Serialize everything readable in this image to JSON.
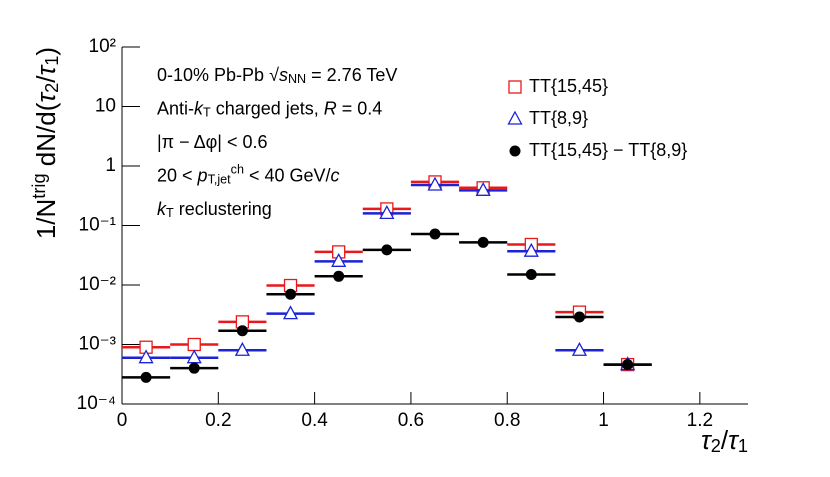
{
  "chart_data": {
    "type": "histogram-points",
    "xlim": [
      0,
      1.3
    ],
    "xticks": [
      0,
      0.2,
      0.4,
      0.6,
      0.8,
      1,
      1.2
    ],
    "ylim": [
      0.0001,
      100
    ],
    "log_y": true,
    "yticks": [
      {
        "value": 100,
        "label": "10²"
      },
      10,
      1,
      {
        "value": 0.1,
        "label": "10⁻¹"
      },
      {
        "value": 0.01,
        "label": "10⁻²"
      },
      {
        "value": 0.001,
        "label": "10⁻³"
      },
      {
        "value": 0.0001,
        "label": "10⁻⁴"
      }
    ],
    "x_label": {
      "parts": [
        "τ",
        "2",
        "/",
        "τ",
        "1"
      ],
      "styles": [
        "i",
        "sub",
        "normal",
        "i",
        "sub"
      ]
    },
    "y_label": {
      "parts": [
        "1/N",
        "trig",
        " dN/d(",
        "τ",
        "2",
        "/",
        "τ",
        "1",
        ")"
      ],
      "styles": [
        "normal",
        "sup",
        "normal",
        "i",
        "sub",
        "normal",
        "i",
        "sub",
        "normal"
      ]
    },
    "annotations": [
      {
        "parts": [
          "0-10% Pb-Pb ",
          "√",
          "s",
          "NN",
          " = 2.76 TeV"
        ],
        "styles": [
          "normal",
          "normal",
          "i",
          "sub",
          "normal"
        ]
      },
      {
        "parts": [
          "Anti-",
          "k",
          "T",
          "  charged jets, ",
          "R",
          " = 0.4"
        ],
        "styles": [
          "normal",
          "i",
          "sub",
          "normal",
          "i",
          "normal"
        ]
      },
      {
        "parts": [
          "|π − Δφ| < 0.6"
        ],
        "styles": [
          "normal"
        ]
      },
      {
        "parts": [
          "20 < ",
          "p",
          "T,jet",
          "ch",
          " < 40 GeV/",
          "c"
        ],
        "styles": [
          "normal",
          "i",
          "sub",
          "sup",
          "normal",
          "i"
        ]
      },
      {
        "parts": [
          "k",
          "T",
          " reclustering"
        ],
        "styles": [
          "i",
          "sub",
          "normal"
        ]
      }
    ],
    "bins": [
      0,
      0.1,
      0.2,
      0.3,
      0.4,
      0.5,
      0.6,
      0.7,
      0.8,
      0.9,
      1.0,
      1.1
    ],
    "series": [
      {
        "name": "TT{15,45}",
        "color": "#e8191b",
        "marker": "open-square",
        "values": [
          0.0009,
          0.001,
          0.0024,
          0.0098,
          0.036,
          0.19,
          0.54,
          0.43,
          0.048,
          0.0035,
          0.00046
        ]
      },
      {
        "name": "TT{8,9}",
        "color": "#1c23d6",
        "marker": "open-triangle",
        "values": [
          0.0006,
          0.0006,
          0.0008,
          0.0033,
          0.025,
          0.16,
          0.48,
          0.39,
          0.037,
          0.0008,
          0.00046
        ]
      },
      {
        "name": "TT{15,45} − TT{8,9}",
        "color": "#000000",
        "marker": "filled-circle",
        "values": [
          0.00028,
          0.0004,
          0.0017,
          0.007,
          0.014,
          0.039,
          0.072,
          0.052,
          0.015,
          0.0029,
          0.00046
        ]
      }
    ]
  }
}
